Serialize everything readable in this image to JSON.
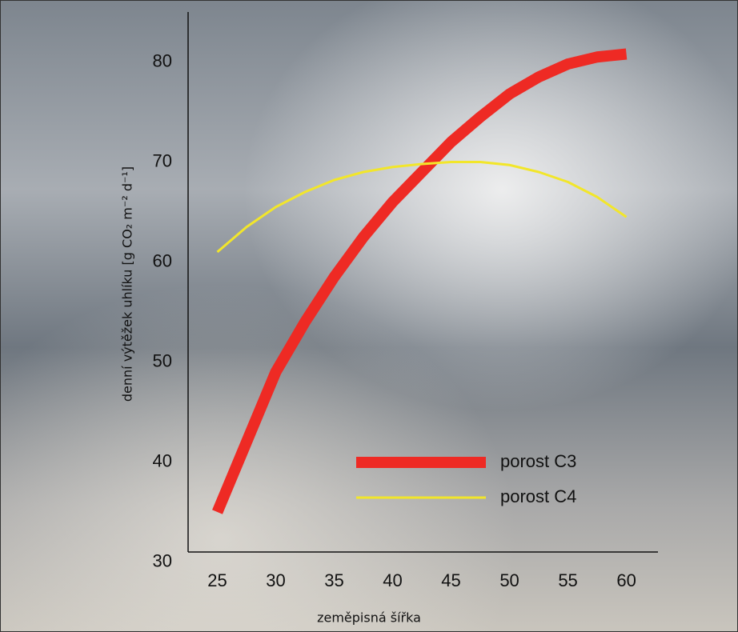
{
  "chart_data": {
    "type": "line",
    "x_label": "zeměpisná šířka",
    "y_label": "denní výtěžek uhlíku [g CO₂ m⁻² d⁻¹]",
    "x": [
      25,
      27.5,
      30,
      32.5,
      35,
      37.5,
      40,
      42.5,
      45,
      47.5,
      50,
      52.5,
      55,
      57.5,
      60
    ],
    "series": [
      {
        "name": "porost C3",
        "color": "#ee2a24",
        "width": 14,
        "values": [
          35,
          42,
          49,
          54,
          58.5,
          62.5,
          66,
          69,
          72,
          74.5,
          76.8,
          78.5,
          79.8,
          80.5,
          80.8
        ]
      },
      {
        "name": "porost C4",
        "color": "#f2e62a",
        "width": 3,
        "values": [
          61,
          63.5,
          65.5,
          67,
          68.2,
          69,
          69.5,
          69.8,
          70,
          70,
          69.7,
          69,
          68,
          66.5,
          64.5
        ]
      }
    ],
    "xlim": [
      22.5,
      62.7
    ],
    "ylim": [
      31,
      85
    ],
    "xticks": [
      25,
      30,
      35,
      40,
      45,
      50,
      55,
      60
    ],
    "yticks": [
      30,
      40,
      50,
      60,
      70,
      80
    ],
    "grid": false
  }
}
